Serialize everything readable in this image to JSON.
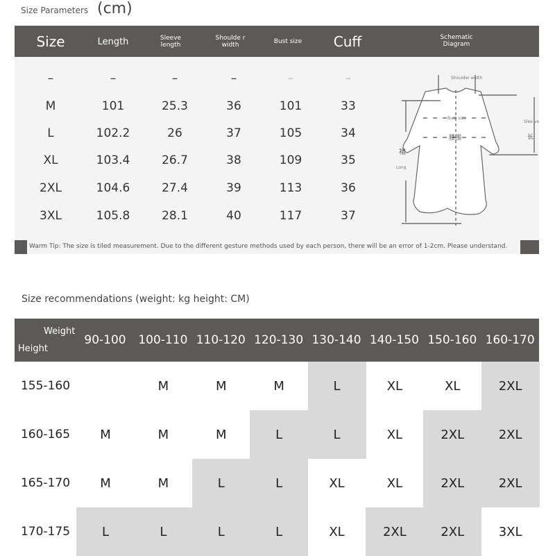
{
  "size_parameters": {
    "title": "Size Parameters",
    "unit": "(cm)",
    "headers": {
      "size": "Size",
      "length": "Length",
      "sleeve": "Sleeve length",
      "shoulder": "Shoulde r width",
      "bust": "Bust size",
      "cuff": "Cuff",
      "diagram": "Schematic Diagram"
    },
    "rows": [
      [
        "–",
        "–",
        "–",
        "–",
        "cm",
        "cm"
      ],
      [
        "M",
        "101",
        "25.3",
        "36",
        "101",
        "33"
      ],
      [
        "L",
        "102.2",
        "26",
        "37",
        "105",
        "34"
      ],
      [
        "XL",
        "103.4",
        "26.7",
        "38",
        "109",
        "35"
      ],
      [
        "2XL",
        "104.6",
        "27.4",
        "39",
        "113",
        "36"
      ],
      [
        "3XL",
        "105.8",
        "28.1",
        "40",
        "117",
        "37"
      ]
    ],
    "diagram_labels": {
      "shoulder": "Shoulder width",
      "bust": "Bust size",
      "waist": "腰围",
      "sleeve": "Slee ve",
      "sleeve_cn": "长",
      "length_cn": "裙",
      "length": "Long"
    },
    "warm_tip": "Warm Tip: The size is tiled measurement. Due to the different gesture methods used by each person, there will be an error of 1-2cm. Please understand."
  },
  "recommendations": {
    "title": "Size recommendations (weight: kg height: CM)",
    "weight_label": "Weight",
    "height_label": "Height",
    "weights": [
      "90-100",
      "100-110",
      "110-120",
      "120-130",
      "130-140",
      "140-150",
      "150-160",
      "160-170"
    ],
    "rows": [
      {
        "height": "155-160",
        "sizes": [
          "",
          "M",
          "M",
          "M",
          "L",
          "XL",
          "XL",
          "2XL"
        ],
        "shaded": [
          false,
          false,
          false,
          false,
          true,
          false,
          false,
          true
        ]
      },
      {
        "height": "160-165",
        "sizes": [
          "M",
          "M",
          "M",
          "L",
          "L",
          "XL",
          "2XL",
          "2XL"
        ],
        "shaded": [
          false,
          false,
          false,
          true,
          true,
          false,
          true,
          true
        ]
      },
      {
        "height": "165-170",
        "sizes": [
          "M",
          "M",
          "L",
          "L",
          "XL",
          "XL",
          "2XL",
          "2XL"
        ],
        "shaded": [
          false,
          false,
          true,
          true,
          false,
          false,
          true,
          true
        ]
      },
      {
        "height": "170-175",
        "sizes": [
          "L",
          "L",
          "L",
          "L",
          "XL",
          "2XL",
          "2XL",
          "3XL"
        ],
        "shaded": [
          true,
          true,
          true,
          true,
          false,
          true,
          true,
          false
        ]
      }
    ],
    "colors": {
      "header": "#5b5a58",
      "shaded": "#d9d9d9"
    }
  }
}
